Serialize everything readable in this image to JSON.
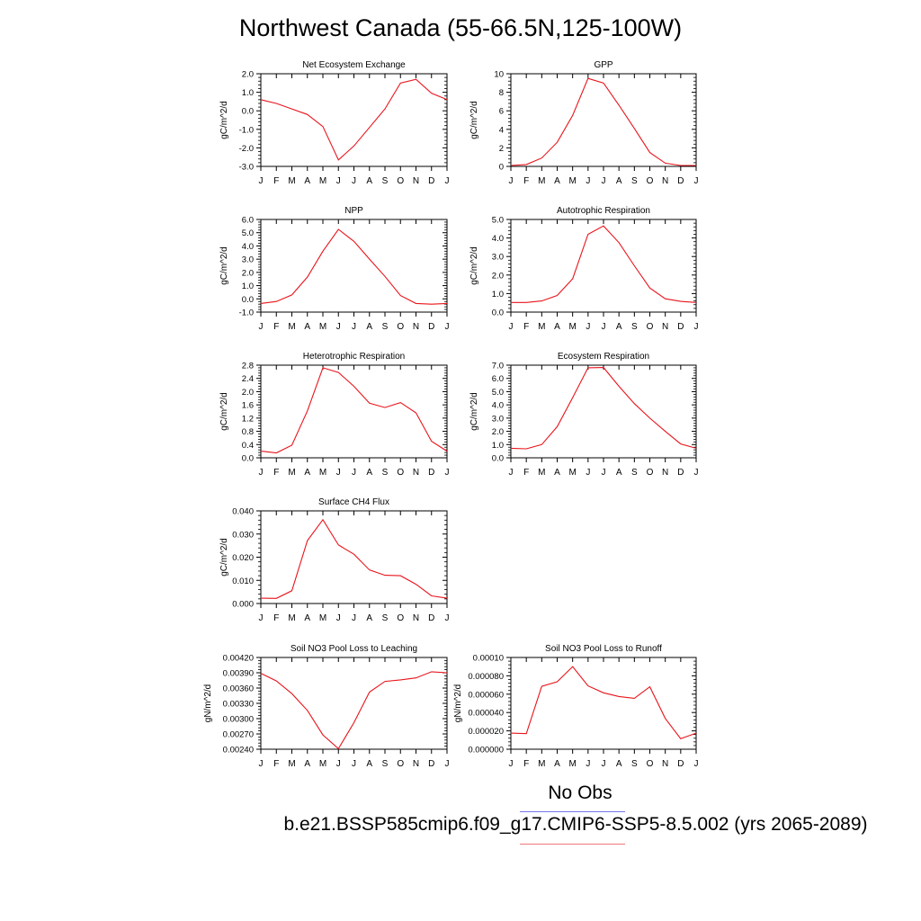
{
  "page": {
    "title": "Northwest Canada (55-66.5N,125-100W)",
    "legend": {
      "obs_label": "No Obs",
      "obs_color": "#7777ee",
      "case_label": "b.e21.BSSP585cmip6.f09_g17.CMIP6-SSP5-8.5.002 (yrs 2065-2089)",
      "case_color": "#ee7777"
    },
    "series_color": "#e8141b"
  },
  "chart_data": [
    {
      "type": "line",
      "title": "Net Ecosystem Exchange",
      "ylabel": "gC/m^2/d",
      "categories": [
        "J",
        "F",
        "M",
        "A",
        "M",
        "J",
        "J",
        "A",
        "S",
        "O",
        "N",
        "D",
        "J"
      ],
      "ylim": [
        -3.0,
        2.0
      ],
      "yticks": [
        -3.0,
        -2.0,
        -1.0,
        0.0,
        1.0,
        2.0
      ],
      "yticklabels": [
        "-3.0",
        "-2.0",
        "-1.0",
        "0.0",
        "1.0",
        "2.0"
      ],
      "values": [
        0.6,
        0.4,
        0.1,
        -0.2,
        -0.85,
        -2.65,
        -1.9,
        -0.9,
        0.1,
        1.5,
        1.7,
        0.95,
        0.6
      ]
    },
    {
      "type": "line",
      "title": "GPP",
      "ylabel": "gC/m^2/d",
      "categories": [
        "J",
        "F",
        "M",
        "A",
        "M",
        "J",
        "J",
        "A",
        "S",
        "O",
        "N",
        "D",
        "J"
      ],
      "ylim": [
        0,
        10
      ],
      "yticks": [
        0,
        2,
        4,
        6,
        8,
        10
      ],
      "yticklabels": [
        "0",
        "2",
        "4",
        "6",
        "8",
        "10"
      ],
      "values": [
        0.1,
        0.2,
        0.9,
        2.6,
        5.5,
        9.5,
        9.0,
        6.6,
        4.1,
        1.5,
        0.35,
        0.1,
        0.1
      ]
    },
    {
      "type": "line",
      "title": "NPP",
      "ylabel": "gC/m^2/d",
      "categories": [
        "J",
        "F",
        "M",
        "A",
        "M",
        "J",
        "J",
        "A",
        "S",
        "O",
        "N",
        "D",
        "J"
      ],
      "ylim": [
        -1.0,
        6.0
      ],
      "yticks": [
        -1.0,
        0.0,
        1.0,
        2.0,
        3.0,
        4.0,
        5.0,
        6.0
      ],
      "yticklabels": [
        "-1.0",
        "0.0",
        "1.0",
        "2.0",
        "3.0",
        "4.0",
        "5.0",
        "6.0"
      ],
      "values": [
        -0.35,
        -0.2,
        0.3,
        1.65,
        3.6,
        5.25,
        4.35,
        3.0,
        1.7,
        0.25,
        -0.35,
        -0.4,
        -0.35
      ]
    },
    {
      "type": "line",
      "title": "Autotrophic Respiration",
      "ylabel": "gC/m^2/d",
      "categories": [
        "J",
        "F",
        "M",
        "A",
        "M",
        "J",
        "J",
        "A",
        "S",
        "O",
        "N",
        "D",
        "J"
      ],
      "ylim": [
        0.0,
        5.0
      ],
      "yticks": [
        0.0,
        1.0,
        2.0,
        3.0,
        4.0,
        5.0
      ],
      "yticklabels": [
        "0.0",
        "1.0",
        "2.0",
        "3.0",
        "4.0",
        "5.0"
      ],
      "values": [
        0.52,
        0.52,
        0.6,
        0.9,
        1.8,
        4.2,
        4.65,
        3.75,
        2.5,
        1.3,
        0.72,
        0.58,
        0.52
      ]
    },
    {
      "type": "line",
      "title": "Heterotrophic Respiration",
      "ylabel": "gC/m^2/d",
      "categories": [
        "J",
        "F",
        "M",
        "A",
        "M",
        "J",
        "J",
        "A",
        "S",
        "O",
        "N",
        "D",
        "J"
      ],
      "ylim": [
        0.0,
        2.8
      ],
      "yticks": [
        0.0,
        0.4,
        0.8,
        1.2,
        1.6,
        2.0,
        2.4,
        2.8
      ],
      "yticklabels": [
        "0.0",
        "0.4",
        "0.8",
        "1.2",
        "1.6",
        "2.0",
        "2.4",
        "2.8"
      ],
      "values": [
        0.2,
        0.15,
        0.38,
        1.42,
        2.72,
        2.58,
        2.16,
        1.65,
        1.52,
        1.67,
        1.36,
        0.5,
        0.2
      ]
    },
    {
      "type": "line",
      "title": "Ecosystem Respiration",
      "ylabel": "gC/m^2/d",
      "categories": [
        "J",
        "F",
        "M",
        "A",
        "M",
        "J",
        "J",
        "A",
        "S",
        "O",
        "N",
        "D",
        "J"
      ],
      "ylim": [
        0.0,
        7.0
      ],
      "yticks": [
        0.0,
        1.0,
        2.0,
        3.0,
        4.0,
        5.0,
        6.0,
        7.0
      ],
      "yticklabels": [
        "0.0",
        "1.0",
        "2.0",
        "3.0",
        "4.0",
        "5.0",
        "6.0",
        "7.0"
      ],
      "values": [
        0.72,
        0.68,
        1.0,
        2.35,
        4.55,
        6.8,
        6.82,
        5.4,
        4.1,
        3.0,
        2.0,
        1.05,
        0.72
      ]
    },
    {
      "type": "line",
      "title": "Surface CH4 Flux",
      "ylabel": "gC/m^2/d",
      "categories": [
        "J",
        "F",
        "M",
        "A",
        "M",
        "J",
        "J",
        "A",
        "S",
        "O",
        "N",
        "D",
        "J"
      ],
      "ylim": [
        0.0,
        0.04
      ],
      "yticks": [
        0.0,
        0.01,
        0.02,
        0.03,
        0.04
      ],
      "yticklabels": [
        "0.000",
        "0.010",
        "0.020",
        "0.030",
        "0.040"
      ],
      "values": [
        0.0023,
        0.0022,
        0.0055,
        0.0272,
        0.0362,
        0.0253,
        0.0213,
        0.0145,
        0.0122,
        0.012,
        0.0083,
        0.0033,
        0.0023
      ]
    },
    {
      "type": "line",
      "title": "Soil NO3 Pool Loss to Leaching",
      "ylabel": "gN/m^2/d",
      "categories": [
        "J",
        "F",
        "M",
        "A",
        "M",
        "J",
        "J",
        "A",
        "S",
        "O",
        "N",
        "D",
        "J"
      ],
      "ylim": [
        0.0024,
        0.0042
      ],
      "yticks": [
        0.0024,
        0.0027,
        0.003,
        0.0033,
        0.0036,
        0.0039,
        0.0042
      ],
      "yticklabels": [
        "0.00240",
        "0.00270",
        "0.00300",
        "0.00330",
        "0.00360",
        "0.00390",
        "0.00420"
      ],
      "values": [
        0.00389,
        0.00374,
        0.00349,
        0.00316,
        0.00268,
        0.00241,
        0.00292,
        0.00352,
        0.00373,
        0.00376,
        0.0038,
        0.00392,
        0.0039
      ]
    },
    {
      "type": "line",
      "title": "Soil NO3 Pool Loss to Runoff",
      "ylabel": "gN/m^2/d",
      "categories": [
        "J",
        "F",
        "M",
        "A",
        "M",
        "J",
        "J",
        "A",
        "S",
        "O",
        "N",
        "D",
        "J"
      ],
      "ylim": [
        0.0,
        0.0001
      ],
      "yticks": [
        0.0,
        2e-05,
        4e-05,
        6e-05,
        8e-05,
        0.0001
      ],
      "yticklabels": [
        "0.000000",
        "0.000020",
        "0.000040",
        "0.000060",
        "0.000080",
        "0.00010"
      ],
      "values": [
        1.75e-05,
        1.7e-05,
        6.85e-05,
        7.35e-05,
        9e-05,
        6.9e-05,
        6.15e-05,
        5.75e-05,
        5.55e-05,
        6.8e-05,
        3.35e-05,
        1.15e-05,
        1.75e-05
      ]
    }
  ]
}
